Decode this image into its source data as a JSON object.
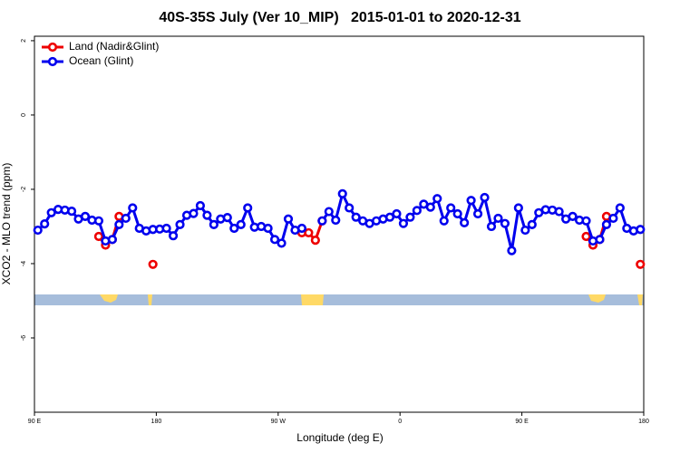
{
  "chart_data": {
    "type": "line",
    "title": "40S-35S July (Ver 10_MIP)   2015-01-01 to 2020-12-31",
    "x_label": "Longitude (deg E)",
    "y_label": "XCO2 - MLO trend (ppm)",
    "xlim": [
      90,
      540
    ],
    "xticks": [
      {
        "value": 90,
        "label": "90 E"
      },
      180,
      {
        "value": 270,
        "label": "90 W"
      },
      {
        "value": 360,
        "label": "0"
      },
      {
        "value": 450,
        "label": "90 E"
      },
      {
        "value": 540,
        "label": "180"
      }
    ],
    "ylim": [
      -8,
      2.12
    ],
    "yticks": [
      2,
      0,
      -2,
      -4,
      -6
    ],
    "legend": "top-left",
    "x": [
      92.5,
      97.5,
      102.5,
      107.5,
      112.5,
      117.5,
      122.5,
      127.5,
      132.5,
      137.5,
      142.5,
      147.5,
      152.5,
      157.5,
      162.5,
      167.5,
      172.5,
      177.5,
      182.5,
      187.5,
      192.5,
      197.5,
      202.5,
      207.5,
      212.5,
      217.5,
      222.5,
      227.5,
      232.5,
      237.5,
      242.5,
      247.5,
      252.5,
      257.5,
      262.5,
      267.5,
      272.5,
      277.5,
      282.5,
      287.5,
      292.5,
      297.5,
      302.5,
      307.5,
      312.5,
      317.5,
      322.5,
      327.5,
      332.5,
      337.5,
      342.5,
      347.5,
      352.5,
      357.5,
      362.5,
      367.5,
      372.5,
      377.5,
      382.5,
      387.5,
      392.5,
      397.5,
      402.5,
      407.5,
      412.5,
      417.5,
      422.5,
      427.5,
      432.5,
      437.5,
      442.5,
      447.5,
      452.5,
      457.5,
      462.5,
      467.5,
      472.5,
      477.5,
      482.5,
      487.5,
      492.5,
      497.5,
      502.5,
      507.5,
      512.5,
      517.5,
      522.5,
      527.5,
      532.5,
      537.5
    ],
    "series": [
      {
        "name": "Land (Nadir&Glint)",
        "color": "#ee0000",
        "values": [
          null,
          null,
          null,
          null,
          null,
          null,
          null,
          null,
          null,
          -3.27,
          -3.5,
          -3.35,
          -2.73,
          null,
          null,
          null,
          null,
          -4.02,
          null,
          null,
          null,
          null,
          null,
          null,
          null,
          null,
          null,
          null,
          null,
          null,
          null,
          null,
          null,
          null,
          null,
          null,
          null,
          null,
          null,
          -3.17,
          -3.17,
          -3.37,
          -2.85,
          null,
          null,
          null,
          null,
          null,
          null,
          null,
          null,
          null,
          null,
          null,
          null,
          null,
          null,
          null,
          null,
          null,
          null,
          null,
          null,
          null,
          null,
          null,
          null,
          null,
          null,
          null,
          null,
          null,
          null,
          null,
          null,
          null,
          null,
          null,
          null,
          null,
          null,
          -3.27,
          -3.5,
          -3.35,
          -2.73,
          null,
          null,
          null,
          null,
          -4.02
        ]
      },
      {
        "name": "Ocean (Glint)",
        "color": "#0000ee",
        "values": [
          -3.1,
          -2.93,
          -2.63,
          -2.54,
          -2.56,
          -2.59,
          -2.8,
          -2.73,
          -2.83,
          -2.85,
          -3.39,
          -3.35,
          -2.95,
          -2.78,
          -2.5,
          -3.05,
          -3.12,
          -3.08,
          -3.07,
          -3.05,
          -3.25,
          -2.95,
          -2.7,
          -2.65,
          -2.44,
          -2.7,
          -2.95,
          -2.8,
          -2.76,
          -3.05,
          -2.95,
          -2.5,
          -3.02,
          -3.0,
          -3.05,
          -3.35,
          -3.45,
          -2.8,
          -3.1,
          -3.05,
          null,
          null,
          -2.85,
          -2.6,
          -2.83,
          -2.12,
          -2.5,
          -2.75,
          -2.85,
          -2.92,
          -2.85,
          -2.8,
          -2.75,
          -2.66,
          -2.92,
          -2.75,
          -2.57,
          -2.4,
          -2.48,
          -2.25,
          -2.85,
          -2.5,
          -2.66,
          -2.9,
          -2.3,
          -2.66,
          -2.22,
          -3.0,
          -2.78,
          -2.92,
          -3.65,
          -2.5,
          -3.1,
          -2.95,
          -2.63,
          -2.55,
          -2.56,
          -2.6,
          -2.8,
          -2.73,
          -2.83,
          -2.85,
          -3.39,
          -3.35,
          -2.95,
          -2.78,
          -2.5,
          -3.05,
          -3.12,
          -3.08
        ]
      }
    ]
  }
}
